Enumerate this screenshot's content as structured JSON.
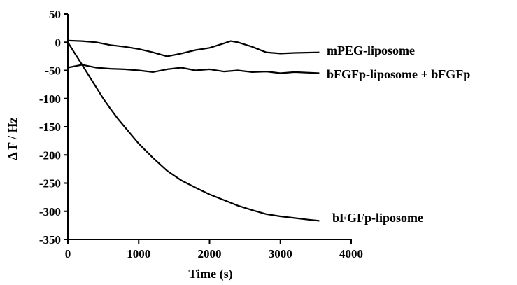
{
  "chart_data": {
    "type": "line",
    "title": "",
    "xlabel": "Time (s)",
    "ylabel": "Δ F / Hz",
    "xlim": [
      0,
      4000
    ],
    "ylim": [
      -350,
      50
    ],
    "xticks": [
      0,
      1000,
      2000,
      3000,
      4000
    ],
    "yticks": [
      50,
      0,
      -50,
      -100,
      -150,
      -200,
      -250,
      -300,
      -350
    ],
    "grid": false,
    "legend": "inline-right",
    "series": [
      {
        "name": "mPEG-liposome",
        "color": "#000000",
        "x": [
          0,
          200,
          400,
          600,
          800,
          1000,
          1200,
          1400,
          1600,
          1800,
          2000,
          2200,
          2300,
          2400,
          2600,
          2800,
          3000,
          3200,
          3550
        ],
        "y": [
          3,
          2,
          0,
          -5,
          -8,
          -12,
          -18,
          -25,
          -20,
          -14,
          -10,
          -2,
          2,
          0,
          -8,
          -18,
          -20,
          -19,
          -18
        ]
      },
      {
        "name": "bFGFp-liposome + bFGFp",
        "color": "#000000",
        "x": [
          0,
          200,
          400,
          600,
          800,
          1000,
          1200,
          1400,
          1600,
          1800,
          2000,
          2200,
          2400,
          2600,
          2800,
          3000,
          3200,
          3550
        ],
        "y": [
          -45,
          -40,
          -45,
          -47,
          -48,
          -50,
          -53,
          -48,
          -45,
          -50,
          -48,
          -52,
          -50,
          -53,
          -52,
          -55,
          -53,
          -55
        ]
      },
      {
        "name": "bFGFp-liposome",
        "color": "#000000",
        "x": [
          0,
          100,
          200,
          300,
          400,
          500,
          600,
          700,
          800,
          900,
          1000,
          1200,
          1400,
          1600,
          1800,
          2000,
          2200,
          2400,
          2600,
          2800,
          3000,
          3200,
          3400,
          3550
        ],
        "y": [
          0,
          -20,
          -40,
          -60,
          -80,
          -100,
          -118,
          -135,
          -150,
          -165,
          -180,
          -205,
          -228,
          -245,
          -258,
          -270,
          -280,
          -290,
          -298,
          -305,
          -309,
          -312,
          -315,
          -317
        ]
      }
    ]
  }
}
